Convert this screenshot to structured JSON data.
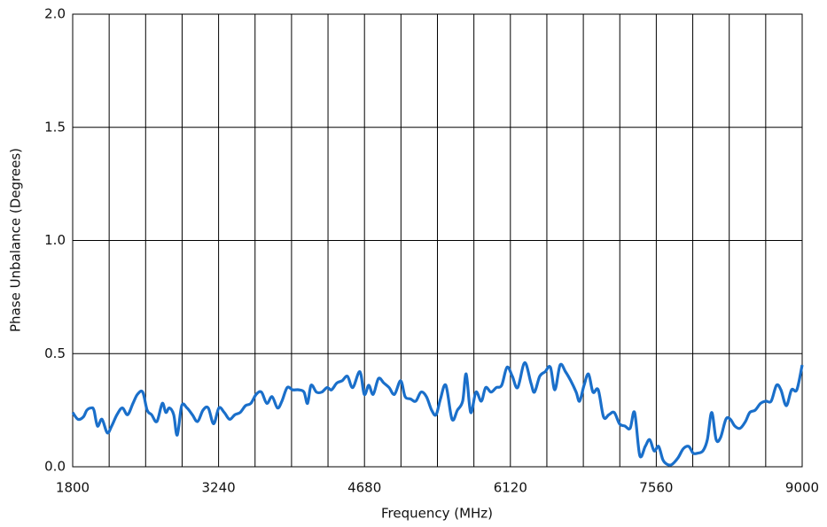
{
  "chart_data": {
    "type": "line",
    "x_label": "Frequency (MHz)",
    "y_label": "Phase Unbalance (Degrees)",
    "xlim": [
      1800,
      9000
    ],
    "xticks": [
      1800,
      3240,
      4680,
      6120,
      7560,
      9000
    ],
    "x_minor_gridlines": [
      2160,
      2520,
      2880,
      3600,
      3960,
      4320,
      5040,
      5400,
      5760,
      6480,
      6840,
      7200,
      7920,
      8280,
      8640
    ],
    "ylim": [
      0,
      2
    ],
    "yticks": [
      {
        "value": 0,
        "label": "0.0"
      },
      0.5,
      {
        "value": 1,
        "label": "1.0"
      },
      1.5,
      {
        "value": 2,
        "label": "2.0"
      }
    ],
    "grid": true,
    "series": [
      {
        "color": "#1a6fca",
        "x": [
          1800,
          1852,
          1905,
          1940,
          1984,
          2010,
          2045,
          2089,
          2141,
          2185,
          2237,
          2290,
          2342,
          2395,
          2439,
          2491,
          2535,
          2579,
          2631,
          2684,
          2719,
          2754,
          2797,
          2832,
          2876,
          2928,
          2981,
          3033,
          3086,
          3138,
          3191,
          3243,
          3296,
          3348,
          3401,
          3453,
          3506,
          3558,
          3611,
          3663,
          3716,
          3768,
          3821,
          3865,
          3917,
          3970,
          4031,
          4083,
          4118,
          4153,
          4206,
          4258,
          4311,
          4354,
          4407,
          4459,
          4512,
          4564,
          4634,
          4678,
          4722,
          4766,
          4818,
          4871,
          4923,
          4976,
          5037,
          5081,
          5133,
          5186,
          5238,
          5291,
          5343,
          5387,
          5430,
          5483,
          5544,
          5597,
          5649,
          5684,
          5728,
          5780,
          5833,
          5876,
          5929,
          5981,
          6034,
          6087,
          6139,
          6192,
          6261,
          6323,
          6358,
          6410,
          6463,
          6515,
          6559,
          6611,
          6664,
          6716,
          6769,
          6803,
          6847,
          6891,
          6935,
          6987,
          7040,
          7092,
          7145,
          7197,
          7250,
          7302,
          7346,
          7397,
          7451,
          7495,
          7539,
          7583,
          7626,
          7670,
          7714,
          7775,
          7827,
          7880,
          7924,
          7967,
          8020,
          8064,
          8107,
          8151,
          8195,
          8247,
          8291,
          8335,
          8387,
          8440,
          8483,
          8536,
          8589,
          8641,
          8694,
          8746,
          8790,
          8843,
          8895,
          8947,
          9000
        ],
        "values": [
          0.24,
          0.21,
          0.22,
          0.25,
          0.26,
          0.25,
          0.18,
          0.21,
          0.15,
          0.18,
          0.23,
          0.26,
          0.23,
          0.28,
          0.32,
          0.33,
          0.25,
          0.23,
          0.2,
          0.28,
          0.24,
          0.26,
          0.23,
          0.14,
          0.27,
          0.26,
          0.23,
          0.2,
          0.25,
          0.26,
          0.19,
          0.26,
          0.24,
          0.21,
          0.23,
          0.24,
          0.27,
          0.28,
          0.32,
          0.33,
          0.28,
          0.31,
          0.26,
          0.29,
          0.35,
          0.34,
          0.34,
          0.33,
          0.28,
          0.36,
          0.33,
          0.33,
          0.35,
          0.34,
          0.37,
          0.38,
          0.4,
          0.35,
          0.42,
          0.32,
          0.36,
          0.32,
          0.39,
          0.37,
          0.35,
          0.32,
          0.38,
          0.31,
          0.3,
          0.29,
          0.33,
          0.31,
          0.25,
          0.23,
          0.3,
          0.36,
          0.21,
          0.25,
          0.29,
          0.41,
          0.24,
          0.33,
          0.29,
          0.35,
          0.33,
          0.35,
          0.36,
          0.44,
          0.4,
          0.35,
          0.46,
          0.37,
          0.33,
          0.4,
          0.42,
          0.44,
          0.34,
          0.45,
          0.42,
          0.38,
          0.33,
          0.29,
          0.36,
          0.41,
          0.33,
          0.34,
          0.22,
          0.23,
          0.24,
          0.19,
          0.18,
          0.17,
          0.24,
          0.05,
          0.09,
          0.12,
          0.07,
          0.09,
          0.03,
          0.01,
          0.01,
          0.04,
          0.08,
          0.09,
          0.06,
          0.06,
          0.07,
          0.12,
          0.24,
          0.12,
          0.13,
          0.21,
          0.21,
          0.18,
          0.17,
          0.2,
          0.24,
          0.25,
          0.28,
          0.29,
          0.29,
          0.36,
          0.34,
          0.27,
          0.34,
          0.34,
          0.45
        ]
      }
    ]
  }
}
